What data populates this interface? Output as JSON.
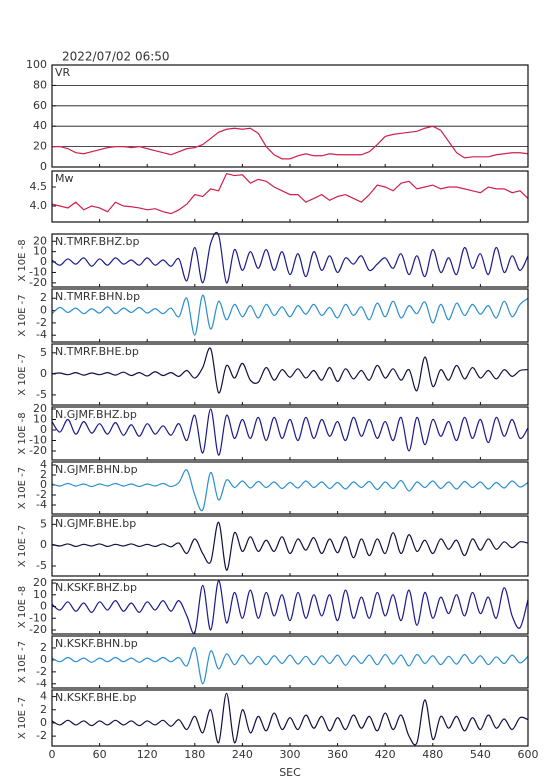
{
  "chart_data": {
    "type": "line",
    "title": "2022/07/02 06:50",
    "xlabel": "SEC",
    "x": [
      0,
      10,
      20,
      30,
      40,
      50,
      60,
      70,
      80,
      90,
      100,
      110,
      120,
      130,
      140,
      150,
      160,
      170,
      180,
      190,
      200,
      210,
      220,
      230,
      240,
      250,
      260,
      270,
      280,
      290,
      300,
      310,
      320,
      330,
      340,
      350,
      360,
      370,
      380,
      390,
      400,
      410,
      420,
      430,
      440,
      450,
      460,
      470,
      480,
      490,
      500,
      510,
      520,
      530,
      540,
      550,
      560,
      570,
      580,
      590,
      600
    ],
    "xlim": [
      0,
      600
    ],
    "xticks": [
      0,
      60,
      120,
      180,
      240,
      300,
      360,
      420,
      480,
      540,
      600
    ],
    "panels": [
      {
        "label": "VR",
        "ylim": [
          0,
          100
        ],
        "yticks": [
          0,
          20,
          40,
          60,
          80,
          100
        ],
        "grid": true,
        "series": [
          {
            "color": "#d0204a",
            "values": [
              20,
              20,
              18,
              14,
              13,
              15,
              17,
              19,
              20,
              20,
              19,
              20,
              18,
              16,
              14,
              12,
              15,
              18,
              19,
              22,
              28,
              34,
              37,
              38,
              37,
              38,
              33,
              20,
              12,
              8,
              8,
              11,
              13,
              11,
              11,
              13,
              12,
              12,
              12,
              12,
              15,
              22,
              30,
              32,
              33,
              34,
              35,
              38,
              40,
              36,
              25,
              14,
              9,
              10,
              10,
              10,
              12,
              13,
              14,
              14,
              13
            ]
          }
        ]
      },
      {
        "label": "Mw",
        "ylim": [
          3.58,
          4.92
        ],
        "yticks": [
          {
            "value": 4,
            "label": "4.0"
          },
          4.5
        ],
        "grid": false,
        "series": [
          {
            "color": "#d0204a",
            "values": [
              4.05,
              4.0,
              3.95,
              4.1,
              3.9,
              4.0,
              3.95,
              3.85,
              4.1,
              4.0,
              3.98,
              3.95,
              3.9,
              3.93,
              3.85,
              3.8,
              3.9,
              4.05,
              4.3,
              4.25,
              4.45,
              4.4,
              4.85,
              4.8,
              4.82,
              4.6,
              4.7,
              4.65,
              4.5,
              4.4,
              4.3,
              4.3,
              4.1,
              4.2,
              4.3,
              4.15,
              4.25,
              4.3,
              4.2,
              4.1,
              4.3,
              4.55,
              4.5,
              4.4,
              4.6,
              4.65,
              4.45,
              4.5,
              4.55,
              4.45,
              4.5,
              4.5,
              4.45,
              4.4,
              4.35,
              4.5,
              4.45,
              4.45,
              4.35,
              4.4,
              4.2
            ]
          }
        ]
      },
      {
        "label": "N.TMRF.BHZ.bp",
        "ylabel": "X 10E -8",
        "ylim": [
          -24,
          27
        ],
        "yticks": [
          -20,
          -10,
          0,
          10,
          20
        ],
        "grid": false,
        "series": [
          {
            "color": "#1a1a8c",
            "values": [
              2,
              -3,
              3,
              -2,
              4,
              -4,
              3,
              -3,
              4,
              -2,
              2,
              -3,
              4,
              -3,
              2,
              -4,
              3,
              -18,
              14,
              -20,
              18,
              26,
              -20,
              12,
              -8,
              10,
              -6,
              12,
              -8,
              10,
              -12,
              8,
              -14,
              10,
              -8,
              6,
              -10,
              4,
              -2,
              6,
              -8,
              -2,
              4,
              -6,
              8,
              -12,
              6,
              -14,
              12,
              -10,
              4,
              -12,
              14,
              -6,
              8,
              -12,
              14,
              -10,
              6,
              -8,
              6
            ]
          }
        ]
      },
      {
        "label": "N.TMRF.BHN.bp",
        "ylabel": "X 10E -7",
        "ylim": [
          -5.1,
          3.5
        ],
        "yticks": [
          -4,
          -2,
          0,
          2
        ],
        "grid": false,
        "series": [
          {
            "color": "#2a8fd0",
            "values": [
              -0.5,
              0.5,
              -0.3,
              0.4,
              -0.5,
              0.3,
              -0.4,
              0.6,
              -0.5,
              0.4,
              -0.3,
              0.5,
              -0.4,
              0.3,
              -0.5,
              0.4,
              -1,
              2,
              -4,
              2.5,
              -3,
              1.5,
              -1.5,
              1,
              -1,
              0.8,
              -1.2,
              1,
              -0.8,
              0.6,
              -1,
              0.8,
              -0.6,
              1,
              -0.8,
              0.5,
              -1.2,
              1,
              -0.8,
              0.6,
              -1.5,
              1.2,
              -1,
              1.5,
              -1.2,
              0.8,
              -0.5,
              1.4,
              -2,
              1,
              -1.5,
              1.2,
              -0.8,
              1,
              -0.6,
              0.8,
              -1.2,
              1.5,
              -1,
              1,
              2
            ]
          }
        ]
      },
      {
        "label": "N.TMRF.BHE.bp",
        "ylabel": "X 10E -7",
        "ylim": [
          -7.4,
          7.1
        ],
        "yticks": [
          -5,
          0,
          5
        ],
        "grid": false,
        "series": [
          {
            "color": "#101040",
            "values": [
              0,
              0.2,
              -0.2,
              0.3,
              -0.3,
              0.2,
              -0.2,
              0.3,
              -0.3,
              0.4,
              -0.4,
              0.3,
              -0.5,
              0.5,
              -0.4,
              0.3,
              -0.6,
              0.8,
              -1,
              1.5,
              6,
              -4.5,
              2,
              -1,
              2.5,
              -1.5,
              -2,
              1.5,
              -1.5,
              1,
              -0.8,
              1.2,
              -1,
              0.8,
              -1.5,
              1.5,
              -1.8,
              1.2,
              -1.2,
              0.8,
              -1.5,
              2,
              -1,
              1.2,
              -1.5,
              1,
              -4,
              4,
              -3,
              1,
              -1.5,
              2,
              -1.2,
              1.5,
              -1,
              0.8,
              -1.2,
              1,
              -0.6,
              0.8,
              1
            ]
          }
        ]
      },
      {
        "label": "N.GJMF.BHZ.bp",
        "ylabel": "X 10E -8",
        "ylim": [
          -28.6,
          21.9
        ],
        "yticks": [
          -20,
          -10,
          0,
          10,
          20
        ],
        "grid": false,
        "series": [
          {
            "color": "#1a1a8c",
            "values": [
              8,
              -2,
              10,
              -4,
              8,
              -3,
              6,
              -4,
              7,
              -5,
              5,
              -6,
              6,
              -4,
              4,
              -5,
              6,
              -10,
              14,
              -22,
              20,
              -24,
              14,
              -8,
              10,
              -8,
              12,
              -10,
              12,
              -8,
              10,
              -10,
              12,
              -8,
              10,
              -6,
              8,
              -10,
              12,
              -6,
              10,
              -8,
              8,
              -10,
              12,
              -20,
              12,
              -14,
              10,
              -6,
              8,
              -10,
              12,
              -8,
              10,
              -12,
              12,
              -6,
              10,
              -8,
              2
            ]
          }
        ]
      },
      {
        "label": "N.GJMF.BHN.bp",
        "ylabel": "X 10E -7",
        "ylim": [
          -5.8,
          4.6
        ],
        "yticks": [
          -4,
          -2,
          0,
          2,
          4
        ],
        "grid": false,
        "series": [
          {
            "color": "#2a8fd0",
            "values": [
              0.2,
              -0.2,
              0.3,
              -0.2,
              0.2,
              -0.3,
              0.2,
              -0.2,
              0.3,
              -0.2,
              0.2,
              -0.3,
              0.2,
              -0.2,
              0.3,
              -0.3,
              0.5,
              3,
              -2,
              -5,
              2.5,
              -3,
              1,
              -0.5,
              0.8,
              -0.6,
              0.7,
              -0.5,
              0.6,
              -0.7,
              0.5,
              -0.6,
              0.8,
              -0.5,
              0.6,
              -0.7,
              0.5,
              -0.8,
              0.6,
              -0.5,
              0.7,
              -0.9,
              0.6,
              -0.7,
              0.9,
              -1.2,
              0.6,
              -0.5,
              0.8,
              -0.7,
              0.6,
              -0.8,
              0.7,
              -0.5,
              0.6,
              -0.8,
              0.5,
              -0.6,
              0.8,
              -0.4,
              0.5
            ]
          }
        ]
      },
      {
        "label": "N.GJMF.BHE.bp",
        "ylabel": "X 10E -7",
        "ylim": [
          -7.4,
          7
        ],
        "yticks": [
          -5,
          0,
          5
        ],
        "grid": false,
        "series": [
          {
            "color": "#101040",
            "values": [
              0.2,
              -0.2,
              0.3,
              -0.3,
              0.2,
              -0.2,
              0.3,
              -0.3,
              0.2,
              -0.2,
              0.3,
              -0.3,
              0.2,
              -0.3,
              0.3,
              -0.4,
              0.5,
              -2,
              1.5,
              -2,
              -4,
              5.5,
              -6,
              3,
              -1.5,
              2,
              -1.5,
              1.2,
              -1.5,
              2,
              -2,
              1.5,
              -1.2,
              1.8,
              -2,
              1.5,
              -1.8,
              2,
              -3,
              1.5,
              -2.5,
              1.5,
              -2,
              3,
              -2,
              2.5,
              -1.5,
              1.2,
              -2,
              1.5,
              -1,
              1.2,
              -2.5,
              1.5,
              -1.2,
              1.5,
              -1,
              0.8,
              -0.6,
              0.8,
              0.5
            ]
          }
        ]
      },
      {
        "label": "N.KSKF.BHZ.bp",
        "ylabel": "X 10E -8",
        "ylim": [
          -23.4,
          22.6
        ],
        "yticks": [
          -20,
          -10,
          0,
          10,
          20
        ],
        "grid": false,
        "series": [
          {
            "color": "#1a1a8c",
            "values": [
              2,
              -3,
              4,
              -4,
              3,
              -5,
              4,
              -3,
              5,
              -4,
              3,
              -5,
              4,
              -3,
              5,
              -4,
              5,
              -8,
              -22,
              18,
              -20,
              22,
              -14,
              12,
              -10,
              14,
              -10,
              12,
              -8,
              10,
              -12,
              12,
              -10,
              10,
              -8,
              10,
              -12,
              14,
              -10,
              8,
              -10,
              12,
              -8,
              10,
              -12,
              14,
              -16,
              12,
              -10,
              8,
              -6,
              10,
              -8,
              12,
              -6,
              8,
              -10,
              16,
              -8,
              -18,
              6
            ]
          }
        ]
      },
      {
        "label": "N.KSKF.BHN.bp",
        "ylabel": "X 10E -7",
        "ylim": [
          -4.7,
          4
        ],
        "yticks": [
          -4,
          -2,
          0,
          2
        ],
        "grid": false,
        "series": [
          {
            "color": "#2a8fd0",
            "values": [
              0.3,
              -0.3,
              0.4,
              -0.3,
              0.3,
              -0.4,
              0.3,
              -0.3,
              0.4,
              -0.3,
              0.3,
              -0.4,
              0.3,
              -0.3,
              0.4,
              -0.3,
              0.4,
              -1,
              2,
              -4,
              1.5,
              -1.5,
              1,
              -0.8,
              0.8,
              -0.7,
              0.6,
              -0.8,
              0.7,
              -0.6,
              0.8,
              -0.7,
              0.6,
              -0.8,
              0.7,
              -0.6,
              0.8,
              -0.9,
              0.7,
              -0.6,
              0.8,
              -0.8,
              0.9,
              -0.7,
              0.8,
              -1,
              0.9,
              -0.6,
              0.7,
              -0.8,
              0.6,
              -0.7,
              0.9,
              -0.6,
              0.7,
              -0.8,
              0.5,
              -0.6,
              0.8,
              -0.5,
              0.6
            ]
          }
        ]
      },
      {
        "label": "N.KSKF.BHE.bp",
        "ylabel": "X 10E -7",
        "ylim": [
          -3.5,
          5
        ],
        "yticks": [
          -2,
          0,
          2,
          4
        ],
        "grid": false,
        "series": [
          {
            "color": "#101040",
            "values": [
              0.3,
              -0.3,
              0.4,
              -0.3,
              0.3,
              -0.4,
              0.3,
              -0.3,
              0.4,
              -0.3,
              0.3,
              -0.4,
              0.3,
              -0.3,
              0.4,
              -0.5,
              0.5,
              -1,
              1,
              -1.5,
              2,
              -3,
              4.5,
              -3,
              2,
              -1.5,
              1,
              -1.2,
              1.5,
              -1,
              0.8,
              -1,
              1.2,
              -0.8,
              1,
              -1.2,
              0.8,
              -1,
              1.2,
              -0.8,
              1,
              -1.2,
              1.5,
              -1,
              1.2,
              -2,
              -3,
              3.5,
              -2.5,
              1,
              -0.8,
              1,
              -1.2,
              0.8,
              -1,
              1.2,
              -0.8,
              0.6,
              -1,
              0.8,
              0.5
            ]
          }
        ]
      }
    ]
  }
}
